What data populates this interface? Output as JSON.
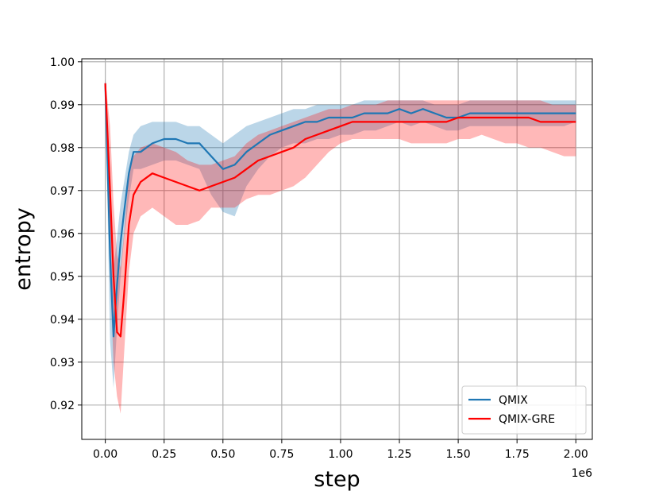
{
  "chart_data": {
    "type": "line",
    "xlabel": "step",
    "ylabel": "entropy",
    "x_offset_label": "1e6",
    "xlim": [
      -0.1,
      2.07
    ],
    "ylim": [
      0.912,
      1.0007
    ],
    "x_ticks": [
      0.0,
      0.25,
      0.5,
      0.75,
      1.0,
      1.25,
      1.5,
      1.75,
      2.0
    ],
    "x_tick_labels": [
      "0.00",
      "0.25",
      "0.50",
      "0.75",
      "1.00",
      "1.25",
      "1.50",
      "1.75",
      "2.00"
    ],
    "y_ticks": [
      0.92,
      0.93,
      0.94,
      0.95,
      0.96,
      0.97,
      0.98,
      0.99,
      1.0
    ],
    "y_tick_labels": [
      "0.92",
      "0.93",
      "0.94",
      "0.95",
      "0.96",
      "0.97",
      "0.98",
      "0.99",
      "1.00"
    ],
    "grid": true,
    "legend_position": "lower-right",
    "colors": {
      "QMIX": "#1f77b4",
      "QMIX-GRE": "#ff0000",
      "QMIX_band": "#1f77b4",
      "QMIX-GRE_band": "#ff0000"
    },
    "series": [
      {
        "name": "QMIX",
        "x": [
          0.0,
          0.02,
          0.035,
          0.05,
          0.065,
          0.08,
          0.1,
          0.12,
          0.15,
          0.2,
          0.25,
          0.3,
          0.35,
          0.4,
          0.45,
          0.5,
          0.55,
          0.6,
          0.65,
          0.7,
          0.75,
          0.8,
          0.85,
          0.9,
          0.95,
          1.0,
          1.05,
          1.1,
          1.15,
          1.2,
          1.25,
          1.3,
          1.35,
          1.4,
          1.45,
          1.5,
          1.55,
          1.6,
          1.65,
          1.7,
          1.75,
          1.8,
          1.85,
          1.9,
          1.95,
          2.0
        ],
        "y": [
          0.995,
          0.955,
          0.936,
          0.948,
          0.958,
          0.965,
          0.974,
          0.979,
          0.979,
          0.981,
          0.982,
          0.982,
          0.981,
          0.981,
          0.978,
          0.975,
          0.976,
          0.979,
          0.981,
          0.983,
          0.984,
          0.985,
          0.986,
          0.986,
          0.987,
          0.987,
          0.987,
          0.988,
          0.988,
          0.988,
          0.989,
          0.988,
          0.989,
          0.988,
          0.987,
          0.987,
          0.988,
          0.988,
          0.988,
          0.988,
          0.988,
          0.988,
          0.988,
          0.988,
          0.988,
          0.988
        ],
        "lower": [
          0.994,
          0.935,
          0.924,
          0.938,
          0.95,
          0.959,
          0.968,
          0.975,
          0.975,
          0.976,
          0.977,
          0.977,
          0.976,
          0.975,
          0.969,
          0.965,
          0.964,
          0.971,
          0.975,
          0.978,
          0.98,
          0.981,
          0.981,
          0.982,
          0.982,
          0.983,
          0.983,
          0.984,
          0.984,
          0.985,
          0.986,
          0.985,
          0.986,
          0.985,
          0.984,
          0.984,
          0.985,
          0.985,
          0.985,
          0.985,
          0.985,
          0.985,
          0.985,
          0.985,
          0.985,
          0.986
        ],
        "upper": [
          0.996,
          0.968,
          0.952,
          0.959,
          0.967,
          0.972,
          0.979,
          0.983,
          0.985,
          0.986,
          0.986,
          0.986,
          0.985,
          0.985,
          0.983,
          0.981,
          0.983,
          0.985,
          0.986,
          0.987,
          0.988,
          0.989,
          0.989,
          0.99,
          0.99,
          0.99,
          0.99,
          0.991,
          0.991,
          0.991,
          0.991,
          0.991,
          0.991,
          0.99,
          0.99,
          0.99,
          0.991,
          0.991,
          0.991,
          0.991,
          0.991,
          0.991,
          0.991,
          0.991,
          0.991,
          0.991
        ]
      },
      {
        "name": "QMIX-GRE",
        "x": [
          0.0,
          0.02,
          0.035,
          0.05,
          0.065,
          0.08,
          0.1,
          0.12,
          0.15,
          0.2,
          0.25,
          0.3,
          0.35,
          0.4,
          0.45,
          0.5,
          0.55,
          0.6,
          0.65,
          0.7,
          0.75,
          0.8,
          0.85,
          0.9,
          0.95,
          1.0,
          1.05,
          1.1,
          1.15,
          1.2,
          1.25,
          1.3,
          1.35,
          1.4,
          1.45,
          1.5,
          1.55,
          1.6,
          1.65,
          1.7,
          1.75,
          1.8,
          1.85,
          1.9,
          1.95,
          2.0
        ],
        "y": [
          0.995,
          0.97,
          0.95,
          0.937,
          0.936,
          0.946,
          0.962,
          0.969,
          0.972,
          0.974,
          0.973,
          0.972,
          0.971,
          0.97,
          0.971,
          0.972,
          0.973,
          0.975,
          0.977,
          0.978,
          0.979,
          0.98,
          0.982,
          0.983,
          0.984,
          0.985,
          0.986,
          0.986,
          0.986,
          0.986,
          0.986,
          0.986,
          0.986,
          0.986,
          0.986,
          0.987,
          0.987,
          0.987,
          0.987,
          0.987,
          0.987,
          0.987,
          0.986,
          0.986,
          0.986,
          0.986
        ],
        "lower": [
          0.994,
          0.95,
          0.93,
          0.922,
          0.918,
          0.932,
          0.951,
          0.96,
          0.964,
          0.966,
          0.964,
          0.962,
          0.962,
          0.963,
          0.966,
          0.966,
          0.966,
          0.968,
          0.969,
          0.969,
          0.97,
          0.971,
          0.973,
          0.976,
          0.979,
          0.981,
          0.982,
          0.982,
          0.982,
          0.982,
          0.982,
          0.981,
          0.981,
          0.981,
          0.981,
          0.982,
          0.982,
          0.983,
          0.982,
          0.981,
          0.981,
          0.98,
          0.98,
          0.979,
          0.978,
          0.978
        ],
        "upper": [
          0.996,
          0.985,
          0.967,
          0.955,
          0.952,
          0.96,
          0.974,
          0.978,
          0.98,
          0.981,
          0.98,
          0.979,
          0.977,
          0.976,
          0.976,
          0.977,
          0.978,
          0.981,
          0.983,
          0.984,
          0.985,
          0.986,
          0.987,
          0.988,
          0.989,
          0.989,
          0.99,
          0.99,
          0.99,
          0.991,
          0.991,
          0.991,
          0.991,
          0.991,
          0.991,
          0.991,
          0.991,
          0.991,
          0.991,
          0.991,
          0.991,
          0.991,
          0.991,
          0.99,
          0.99,
          0.99
        ]
      }
    ]
  }
}
